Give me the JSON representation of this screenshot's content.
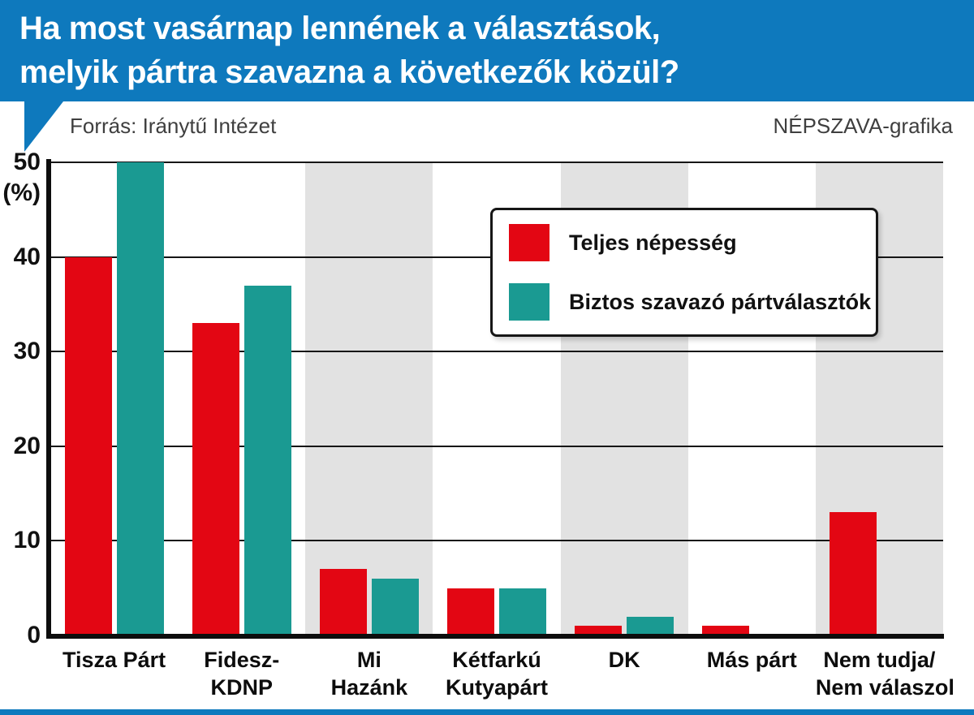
{
  "header": {
    "title_line1": "Ha most vasárnap lennének a választások,",
    "title_line2": "melyik pártra szavazna a következők közül?",
    "source": "Forrás: Iránytű Intézet",
    "credit": "NÉPSZAVA-grafika"
  },
  "colors": {
    "header_blue": "#0e79bd",
    "band_gray": "#e2e2e2",
    "axis_black": "#0d0d0d"
  },
  "chart_data": {
    "type": "bar",
    "title": "Ha most vasárnap lennének a választások, melyik pártra szavazna a következők közül?",
    "unit_label": "(%)",
    "ylim": [
      0,
      50
    ],
    "yticks": [
      0,
      10,
      20,
      30,
      40,
      50
    ],
    "grid": true,
    "legend_position": "upper-right-of-center",
    "categories": [
      "Tisza Párt",
      "Fidesz-KDNP",
      "Mi Hazánk",
      "Kétfarkú Kutyapárt",
      "DK",
      "Más párt",
      "Nem tudja/Nem válaszol"
    ],
    "category_label_lines": [
      [
        "Tisza Párt"
      ],
      [
        "Fidesz-",
        "KDNP"
      ],
      [
        "Mi",
        "Hazánk"
      ],
      [
        "Kétfarkú",
        "Kutyapárt"
      ],
      [
        "DK"
      ],
      [
        "Más párt"
      ],
      [
        "Nem tudja/",
        "Nem válaszol"
      ]
    ],
    "series": [
      {
        "name": "Teljes népesség",
        "color": "#e30613",
        "values": [
          40,
          33,
          7,
          5,
          1,
          1,
          13
        ]
      },
      {
        "name": "Biztos szavazó pártválasztók",
        "color": "#1a9a92",
        "values": [
          50,
          37,
          6,
          5,
          2,
          null,
          null
        ]
      }
    ]
  }
}
